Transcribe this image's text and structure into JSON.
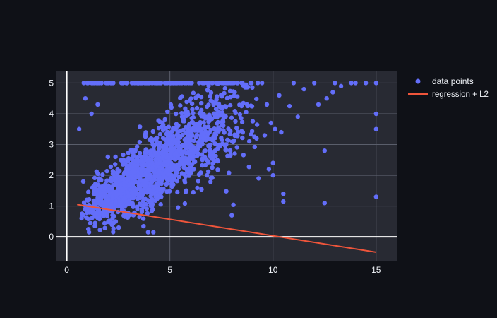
{
  "colors": {
    "page_background": "#0f1117",
    "plot_background": "#282a33",
    "grid": "#5a5e6b",
    "zero_line": "#ffffff",
    "points": "#636efa",
    "regression": "#ef553b",
    "text": "#f2f5fa"
  },
  "chart_data": {
    "type": "scatter",
    "title": "",
    "xlabel": "",
    "ylabel": "",
    "xlim": [
      -0.5,
      16
    ],
    "ylim": [
      -0.8,
      5.4
    ],
    "x_ticks": [
      0,
      5,
      10,
      15
    ],
    "x_tick_labels": [
      "0",
      "5",
      "10",
      "15"
    ],
    "y_ticks": [
      0,
      1,
      2,
      3,
      4,
      5
    ],
    "y_tick_labels": [
      "0",
      "1",
      "2",
      "3",
      "4",
      "5"
    ],
    "grid": true,
    "legend_position": "top-right",
    "legend": [
      {
        "name": "data points",
        "marker": "point"
      },
      {
        "name": "regression + L2",
        "marker": "line"
      }
    ],
    "series": [
      {
        "name": "data points",
        "mode": "markers",
        "cloud": {
          "n_points": 1500,
          "x_min": 0.5,
          "x_max": 9.5,
          "x_mode": 3.2,
          "trend_intercept": 0.45,
          "trend_slope": 0.42,
          "spread": 0.55,
          "y_floor": 0.15,
          "y_cap": 5.0,
          "capped_fraction": 0.07
        },
        "outliers": [
          [
            15,
            5.0
          ],
          [
            15,
            4.0
          ],
          [
            15,
            3.5
          ],
          [
            15,
            1.3
          ],
          [
            12.5,
            2.8
          ],
          [
            12.5,
            1.1
          ],
          [
            10,
            2.4
          ],
          [
            10,
            2.0
          ],
          [
            10.5,
            1.4
          ],
          [
            10.5,
            1.15
          ],
          [
            11.2,
            3.9
          ],
          [
            12.2,
            4.3
          ],
          [
            12.6,
            4.5
          ],
          [
            10.8,
            4.25
          ],
          [
            9.7,
            4.3
          ],
          [
            10.3,
            4.6
          ],
          [
            9.2,
            3.2
          ],
          [
            9.9,
            3.7
          ],
          [
            9.6,
            3.3
          ],
          [
            10.1,
            3.5
          ],
          [
            10.4,
            3.4
          ],
          [
            9.3,
            1.9
          ],
          [
            8.0,
            0.7
          ],
          [
            6.8,
            2.0
          ],
          [
            9.8,
            2.2
          ],
          [
            11.5,
            4.8
          ],
          [
            13.3,
            4.9
          ],
          [
            12.9,
            4.7
          ],
          [
            14.0,
            5.0
          ],
          [
            13.0,
            5.0
          ],
          [
            12.0,
            5.0
          ],
          [
            11.0,
            5.0
          ],
          [
            14.5,
            5.0
          ],
          [
            13.8,
            5.0
          ],
          [
            0.9,
            4.5
          ],
          [
            1.2,
            4.0
          ],
          [
            0.6,
            3.5
          ],
          [
            1.5,
            4.3
          ],
          [
            0.8,
            1.8
          ],
          [
            4.2,
            0.15
          ]
        ]
      },
      {
        "name": "regression + L2",
        "mode": "line",
        "x": [
          0.5,
          15
        ],
        "y": [
          1.05,
          -0.5
        ]
      }
    ]
  }
}
